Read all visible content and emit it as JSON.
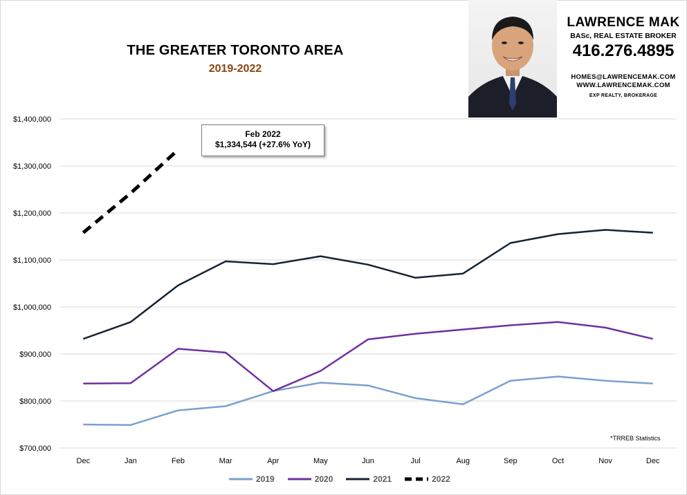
{
  "header": {
    "title": "THE GREATER TORONTO AREA",
    "subtitle": "2019-2022"
  },
  "agent": {
    "name": "LAWRENCE MAK",
    "role": "BASc, REAL ESTATE BROKER",
    "phone": "416.276.4895",
    "email": "HOMES@LAWRENCEMAK.COM",
    "website": "WWW.LAWRENCEMAK.COM",
    "brokerage": "EXP REALTY, BROKERAGE"
  },
  "callout": {
    "line1": "Feb 2022",
    "line2": "$1,334,544  (+27.6%  YoY)"
  },
  "source_note": "*TRREB Statistics",
  "colors": {
    "2019": "#7aa0cf",
    "2020": "#7030a0",
    "2021": "#152333",
    "2022": "#000000",
    "grid": "#d9d9d9"
  },
  "chart_data": {
    "type": "line",
    "categories": [
      "Dec",
      "Jan",
      "Feb",
      "Mar",
      "Apr",
      "May",
      "Jun",
      "Jul",
      "Aug",
      "Sep",
      "Oct",
      "Nov",
      "Dec"
    ],
    "ylim": [
      700000,
      1400000
    ],
    "yticks": [
      700000,
      800000,
      900000,
      1000000,
      1100000,
      1200000,
      1300000,
      1400000
    ],
    "ytick_labels": [
      "$700,000",
      "$800,000",
      "$900,000",
      "$1,000,000",
      "$1,100,000",
      "$1,200,000",
      "$1,300,000",
      "$1,400,000"
    ],
    "grid": "horizontal",
    "legend": "bottom",
    "series": [
      {
        "name": "2019",
        "values": [
          750000,
          749000,
          780000,
          789000,
          821000,
          839000,
          833000,
          806000,
          793000,
          843000,
          852000,
          843000,
          837000
        ]
      },
      {
        "name": "2020",
        "values": [
          837000,
          838000,
          911000,
          903000,
          821000,
          864000,
          931000,
          943000,
          952000,
          961000,
          968000,
          956000,
          932000
        ]
      },
      {
        "name": "2021",
        "values": [
          932000,
          968000,
          1046000,
          1097000,
          1091000,
          1108000,
          1090000,
          1062000,
          1071000,
          1136000,
          1155000,
          1164000,
          1158000
        ]
      },
      {
        "name": "2022",
        "values": [
          1158000,
          1242000,
          1334544,
          null,
          null,
          null,
          null,
          null,
          null,
          null,
          null,
          null,
          null
        ],
        "dashed": true
      }
    ]
  }
}
